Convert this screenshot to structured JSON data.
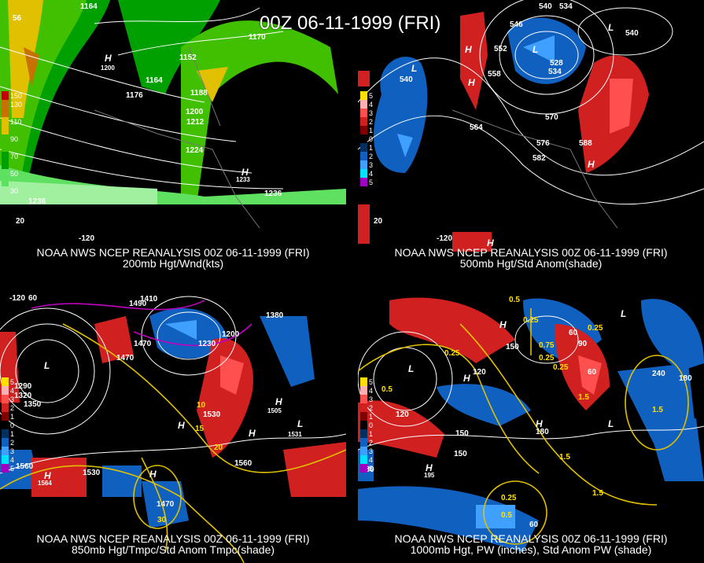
{
  "date_title": "00Z 06-11-1999 (FRI)",
  "panels": [
    {
      "id": "p1",
      "line1": "NOAA NWS NCEP REANALYSIS 00Z 06-11-1999 (FRI)",
      "line2": "200mb Hgt/Wnd(kts)",
      "colorbar": [
        {
          "label": "150",
          "color": "#c00000"
        },
        {
          "label": "130",
          "color": "#c87000"
        },
        {
          "label": "110",
          "color": "#e0c000"
        },
        {
          "label": "90",
          "color": "#40c000"
        },
        {
          "label": "70",
          "color": "#00a000"
        },
        {
          "label": "50",
          "color": "#60e060"
        },
        {
          "label": "30",
          "color": "#a0f0a0"
        }
      ],
      "labels": [
        "1164",
        "1164",
        "1176",
        "1152",
        "1170",
        "1188",
        "1200",
        "1212",
        "1224",
        "1236",
        "1236",
        "1233",
        "1200",
        "56",
        "20",
        "-120"
      ]
    },
    {
      "id": "p2",
      "line1": "NOAA NWS NCEP REANALYSIS 00Z 06-11-1999 (FRI)",
      "line2": "500mb Hgt/Std Anom(shade)",
      "colorbar": [
        {
          "label": "5",
          "color": "#ffe000"
        },
        {
          "label": "4",
          "color": "#ffb0b0"
        },
        {
          "label": "3",
          "color": "#ff5050"
        },
        {
          "label": "2",
          "color": "#d02020"
        },
        {
          "label": "1",
          "color": "#800000"
        },
        {
          "label": "0",
          "color": "#000000"
        },
        {
          "label": "1",
          "color": "#003060"
        },
        {
          "label": "2",
          "color": "#1060c0"
        },
        {
          "label": "3",
          "color": "#40a0ff"
        },
        {
          "label": "4",
          "color": "#00e0ff"
        },
        {
          "label": "5",
          "color": "#a000c0"
        }
      ],
      "labels": [
        "540",
        "534",
        "546",
        "540",
        "552",
        "528",
        "534",
        "558",
        "540",
        "564",
        "570",
        "576",
        "582",
        "588",
        "20",
        "-120"
      ]
    },
    {
      "id": "p3",
      "line1": "NOAA NWS NCEP REANALYSIS 00Z 06-11-1999 (FRI)",
      "line2": "850mb Hgt/Tmpc/Std Anom Tmpc(shade)",
      "colorbar": [
        {
          "label": "5",
          "color": "#ffe000"
        },
        {
          "label": "4",
          "color": "#ffb0b0"
        },
        {
          "label": "3",
          "color": "#ff5050"
        },
        {
          "label": "2",
          "color": "#d02020"
        },
        {
          "label": "1",
          "color": "#800000"
        },
        {
          "label": "0",
          "color": "#000000"
        },
        {
          "label": "1",
          "color": "#003060"
        },
        {
          "label": "2",
          "color": "#1060c0"
        },
        {
          "label": "3",
          "color": "#40a0ff"
        },
        {
          "label": "4",
          "color": "#00e0ff"
        },
        {
          "label": "5",
          "color": "#a000c0"
        }
      ],
      "labels": [
        "1410",
        "1490",
        "1470",
        "1470",
        "1230",
        "1200",
        "1380",
        "1290",
        "1320",
        "1350",
        "1530",
        "1505",
        "1531",
        "1560",
        "1530",
        "1470",
        "1560",
        "1564",
        "10",
        "15",
        "20",
        "30",
        "60",
        "-120"
      ]
    },
    {
      "id": "p4",
      "line1": "NOAA NWS NCEP REANALYSIS 00Z 06-11-1999 (FRI)",
      "line2": "1000mb Hgt, PW (inches), Std Anom PW (shade)",
      "colorbar": [
        {
          "label": "5",
          "color": "#ffe000"
        },
        {
          "label": "4",
          "color": "#ffb0b0"
        },
        {
          "label": "3",
          "color": "#ff5050"
        },
        {
          "label": "2",
          "color": "#d02020"
        },
        {
          "label": "1",
          "color": "#800000"
        },
        {
          "label": "0",
          "color": "#000000"
        },
        {
          "label": "1",
          "color": "#003060"
        },
        {
          "label": "2",
          "color": "#1060c0"
        },
        {
          "label": "3",
          "color": "#40a0ff"
        },
        {
          "label": "4",
          "color": "#00e0ff"
        },
        {
          "label": "5",
          "color": "#a000c0"
        }
      ],
      "labels": [
        "0.5",
        "0.25",
        "0.25",
        "0.5",
        "0.75",
        "0.25",
        "0.25",
        "0.25",
        "1.5",
        "1.5",
        "1.5",
        "150",
        "120",
        "150",
        "180",
        "60",
        "90",
        "60",
        "240",
        "180",
        "120",
        "150",
        "180",
        "195",
        "0.25",
        "0.5",
        "60",
        "1.5"
      ]
    }
  ]
}
